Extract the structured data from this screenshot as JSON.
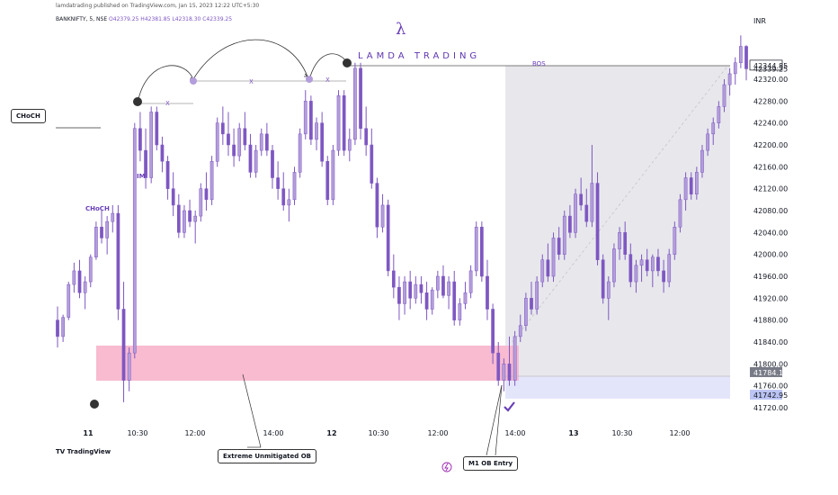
{
  "header": {
    "published": "lamdatrading published on TradingView.com, Jan 15, 2023 12:22 UTC+5:30",
    "symbol": "BANKNIFTY, 5, NSE",
    "ohlc": "O42379.25 H42381.85 L42318.30 C42339.25",
    "currency": "INR"
  },
  "brand": {
    "symbol": "λ",
    "name": "LAMDA TRADING"
  },
  "footer": {
    "logo": "TradingView"
  },
  "annotations": {
    "choch_box": "CHoCH",
    "choch_small": "CHoCH",
    "im": "IM",
    "x1": "X",
    "x2": "X",
    "x3": "X",
    "bos": "BOS",
    "ob_label": "Extreme Unmitigated OB",
    "entry_label": "M1 OB Entry"
  },
  "colors": {
    "candle": "#7e57c2",
    "ob_zone": "#f8bbd0",
    "range_box": "#e8e8ec",
    "entry_zone": "#e3e6fb",
    "price_tag_gray": "#787b86",
    "price_tag_blue": "#bbc4f3"
  },
  "chart_data": {
    "type": "candlestick",
    "y_ticks": [
      41720,
      41760,
      41800,
      41840,
      41880,
      41920,
      41960,
      42000,
      42040,
      42080,
      42120,
      42160,
      42200,
      42240,
      42280,
      42320
    ],
    "y_tick_labels": [
      "41720.00",
      "41760.00",
      "41800.00",
      "41840.00",
      "41880.00",
      "41920.00",
      "41960.00",
      "42000.00",
      "42040.00",
      "42080.00",
      "42120.00",
      "42160.00",
      "42200.00",
      "42240.00",
      "42280.00",
      "42320.00"
    ],
    "x_ticks": [
      "11",
      "10:30",
      "12:00",
      "14:00",
      "12",
      "10:30",
      "12:00",
      "14:00",
      "13",
      "10:30",
      "12:00"
    ],
    "x_tick_bold": [
      true,
      false,
      false,
      false,
      true,
      false,
      false,
      false,
      true,
      false,
      false
    ],
    "price_tags": [
      {
        "label": "42344.85",
        "value": 42344.85,
        "style": "white"
      },
      {
        "label": "42339.25",
        "value": 42339.25,
        "style": "plain"
      },
      {
        "label": "41784.15",
        "value": 41784.15,
        "style": "gray"
      },
      {
        "label": "41742.95",
        "value": 41742.95,
        "style": "blue"
      }
    ],
    "candles": [
      [
        41880,
        41905,
        41830,
        41850
      ],
      [
        41850,
        41890,
        41840,
        41885
      ],
      [
        41885,
        41950,
        41880,
        41945
      ],
      [
        41945,
        41985,
        41930,
        41970
      ],
      [
        41970,
        41990,
        41920,
        41930
      ],
      [
        41930,
        41960,
        41900,
        41950
      ],
      [
        41950,
        42000,
        41940,
        41995
      ],
      [
        41995,
        42060,
        41990,
        42050
      ],
      [
        42050,
        42080,
        42020,
        42030
      ],
      [
        42030,
        42070,
        42000,
        42060
      ],
      [
        42060,
        42090,
        42040,
        42075
      ],
      [
        42075,
        42090,
        41880,
        41900
      ],
      [
        41900,
        41950,
        41730,
        41770
      ],
      [
        41770,
        41830,
        41750,
        41820
      ],
      [
        41820,
        42240,
        41810,
        42230
      ],
      [
        42230,
        42260,
        42170,
        42190
      ],
      [
        42190,
        42230,
        42120,
        42140
      ],
      [
        42140,
        42270,
        42130,
        42260
      ],
      [
        42260,
        42270,
        42190,
        42200
      ],
      [
        42200,
        42215,
        42150,
        42170
      ],
      [
        42170,
        42180,
        42100,
        42120
      ],
      [
        42120,
        42150,
        42070,
        42090
      ],
      [
        42090,
        42110,
        42030,
        42040
      ],
      [
        42040,
        42090,
        42030,
        42080
      ],
      [
        42080,
        42100,
        42050,
        42060
      ],
      [
        42060,
        42080,
        42020,
        42070
      ],
      [
        42070,
        42130,
        42060,
        42120
      ],
      [
        42120,
        42150,
        42080,
        42100
      ],
      [
        42100,
        42180,
        42090,
        42170
      ],
      [
        42170,
        42250,
        42160,
        42240
      ],
      [
        42240,
        42270,
        42200,
        42220
      ],
      [
        42220,
        42260,
        42180,
        42200
      ],
      [
        42200,
        42230,
        42160,
        42180
      ],
      [
        42180,
        42240,
        42170,
        42230
      ],
      [
        42230,
        42260,
        42190,
        42200
      ],
      [
        42200,
        42220,
        42140,
        42150
      ],
      [
        42150,
        42200,
        42140,
        42190
      ],
      [
        42190,
        42230,
        42180,
        42220
      ],
      [
        42220,
        42240,
        42180,
        42190
      ],
      [
        42190,
        42200,
        42120,
        42140
      ],
      [
        42140,
        42170,
        42100,
        42120
      ],
      [
        42120,
        42150,
        42080,
        42090
      ],
      [
        42090,
        42120,
        42060,
        42100
      ],
      [
        42100,
        42160,
        42090,
        42150
      ],
      [
        42150,
        42230,
        42140,
        42220
      ],
      [
        42220,
        42300,
        42210,
        42280
      ],
      [
        42280,
        42290,
        42200,
        42210
      ],
      [
        42210,
        42250,
        42190,
        42240
      ],
      [
        42240,
        42260,
        42160,
        42170
      ],
      [
        42170,
        42180,
        42090,
        42100
      ],
      [
        42100,
        42200,
        42090,
        42190
      ],
      [
        42190,
        42300,
        42180,
        42290
      ],
      [
        42290,
        42300,
        42180,
        42190
      ],
      [
        42190,
        42230,
        42170,
        42210
      ],
      [
        42210,
        42350,
        42200,
        42340
      ],
      [
        42340,
        42350,
        42210,
        42230
      ],
      [
        42230,
        42270,
        42180,
        42200
      ],
      [
        42200,
        42230,
        42120,
        42130
      ],
      [
        42130,
        42140,
        42030,
        42050
      ],
      [
        42050,
        42110,
        42040,
        42090
      ],
      [
        42090,
        42100,
        41960,
        41970
      ],
      [
        41970,
        42000,
        41920,
        41940
      ],
      [
        41940,
        41960,
        41880,
        41910
      ],
      [
        41910,
        41960,
        41890,
        41950
      ],
      [
        41950,
        41970,
        41900,
        41920
      ],
      [
        41920,
        41960,
        41910,
        41945
      ],
      [
        41945,
        41960,
        41910,
        41930
      ],
      [
        41930,
        41950,
        41880,
        41900
      ],
      [
        41900,
        41940,
        41890,
        41935
      ],
      [
        41935,
        41970,
        41920,
        41960
      ],
      [
        41960,
        41980,
        41920,
        41925
      ],
      [
        41925,
        41960,
        41900,
        41950
      ],
      [
        41950,
        41970,
        41870,
        41880
      ],
      [
        41880,
        41920,
        41870,
        41910
      ],
      [
        41910,
        41950,
        41900,
        41930
      ],
      [
        41930,
        41980,
        41920,
        41970
      ],
      [
        41970,
        42060,
        41960,
        42050
      ],
      [
        42050,
        42060,
        41950,
        41960
      ],
      [
        41960,
        41990,
        41880,
        41900
      ],
      [
        41900,
        41910,
        41800,
        41820
      ],
      [
        41820,
        41840,
        41760,
        41770
      ],
      [
        41770,
        41810,
        41750,
        41800
      ],
      [
        41800,
        41850,
        41760,
        41770
      ],
      [
        41770,
        41860,
        41760,
        41850
      ],
      [
        41850,
        41890,
        41840,
        41870
      ],
      [
        41870,
        41930,
        41860,
        41920
      ],
      [
        41920,
        41950,
        41890,
        41900
      ],
      [
        41900,
        41960,
        41890,
        41950
      ],
      [
        41950,
        42000,
        41940,
        41990
      ],
      [
        41990,
        42020,
        41950,
        41960
      ],
      [
        41960,
        42040,
        41950,
        42030
      ],
      [
        42030,
        42050,
        41990,
        42000
      ],
      [
        42000,
        42080,
        41990,
        42070
      ],
      [
        42070,
        42090,
        42030,
        42040
      ],
      [
        42040,
        42120,
        42030,
        42110
      ],
      [
        42110,
        42140,
        42080,
        42090
      ],
      [
        42090,
        42120,
        42050,
        42060
      ],
      [
        42060,
        42200,
        42050,
        42130
      ],
      [
        42130,
        42150,
        41980,
        41990
      ],
      [
        41990,
        42000,
        41910,
        41920
      ],
      [
        41920,
        41960,
        41880,
        41950
      ],
      [
        41950,
        42020,
        41940,
        42010
      ],
      [
        42010,
        42050,
        41990,
        42040
      ],
      [
        42040,
        42060,
        41990,
        42000
      ],
      [
        42000,
        42020,
        41940,
        41950
      ],
      [
        41950,
        41990,
        41930,
        41980
      ],
      [
        41980,
        42000,
        41950,
        41990
      ],
      [
        41990,
        42010,
        41960,
        41970
      ],
      [
        41970,
        42000,
        41940,
        41995
      ],
      [
        41995,
        42010,
        41960,
        41970
      ],
      [
        41970,
        41990,
        41930,
        41950
      ],
      [
        41950,
        42010,
        41940,
        42000
      ],
      [
        42000,
        42060,
        41990,
        42050
      ],
      [
        42050,
        42110,
        42040,
        42100
      ],
      [
        42100,
        42150,
        42080,
        42140
      ],
      [
        42140,
        42150,
        42100,
        42110
      ],
      [
        42110,
        42160,
        42100,
        42150
      ],
      [
        42150,
        42200,
        42140,
        42190
      ],
      [
        42190,
        42230,
        42180,
        42220
      ],
      [
        42220,
        42250,
        42200,
        42240
      ],
      [
        42240,
        42280,
        42230,
        42270
      ],
      [
        42270,
        42320,
        42260,
        42310
      ],
      [
        42310,
        42340,
        42290,
        42330
      ],
      [
        42330,
        42360,
        42310,
        42350
      ],
      [
        42350,
        42400,
        42340,
        42380
      ],
      [
        42380,
        42382,
        42318,
        42339
      ]
    ],
    "ob_zone": {
      "from": 41770,
      "to": 41835
    },
    "bos_level": 42344.85
  }
}
